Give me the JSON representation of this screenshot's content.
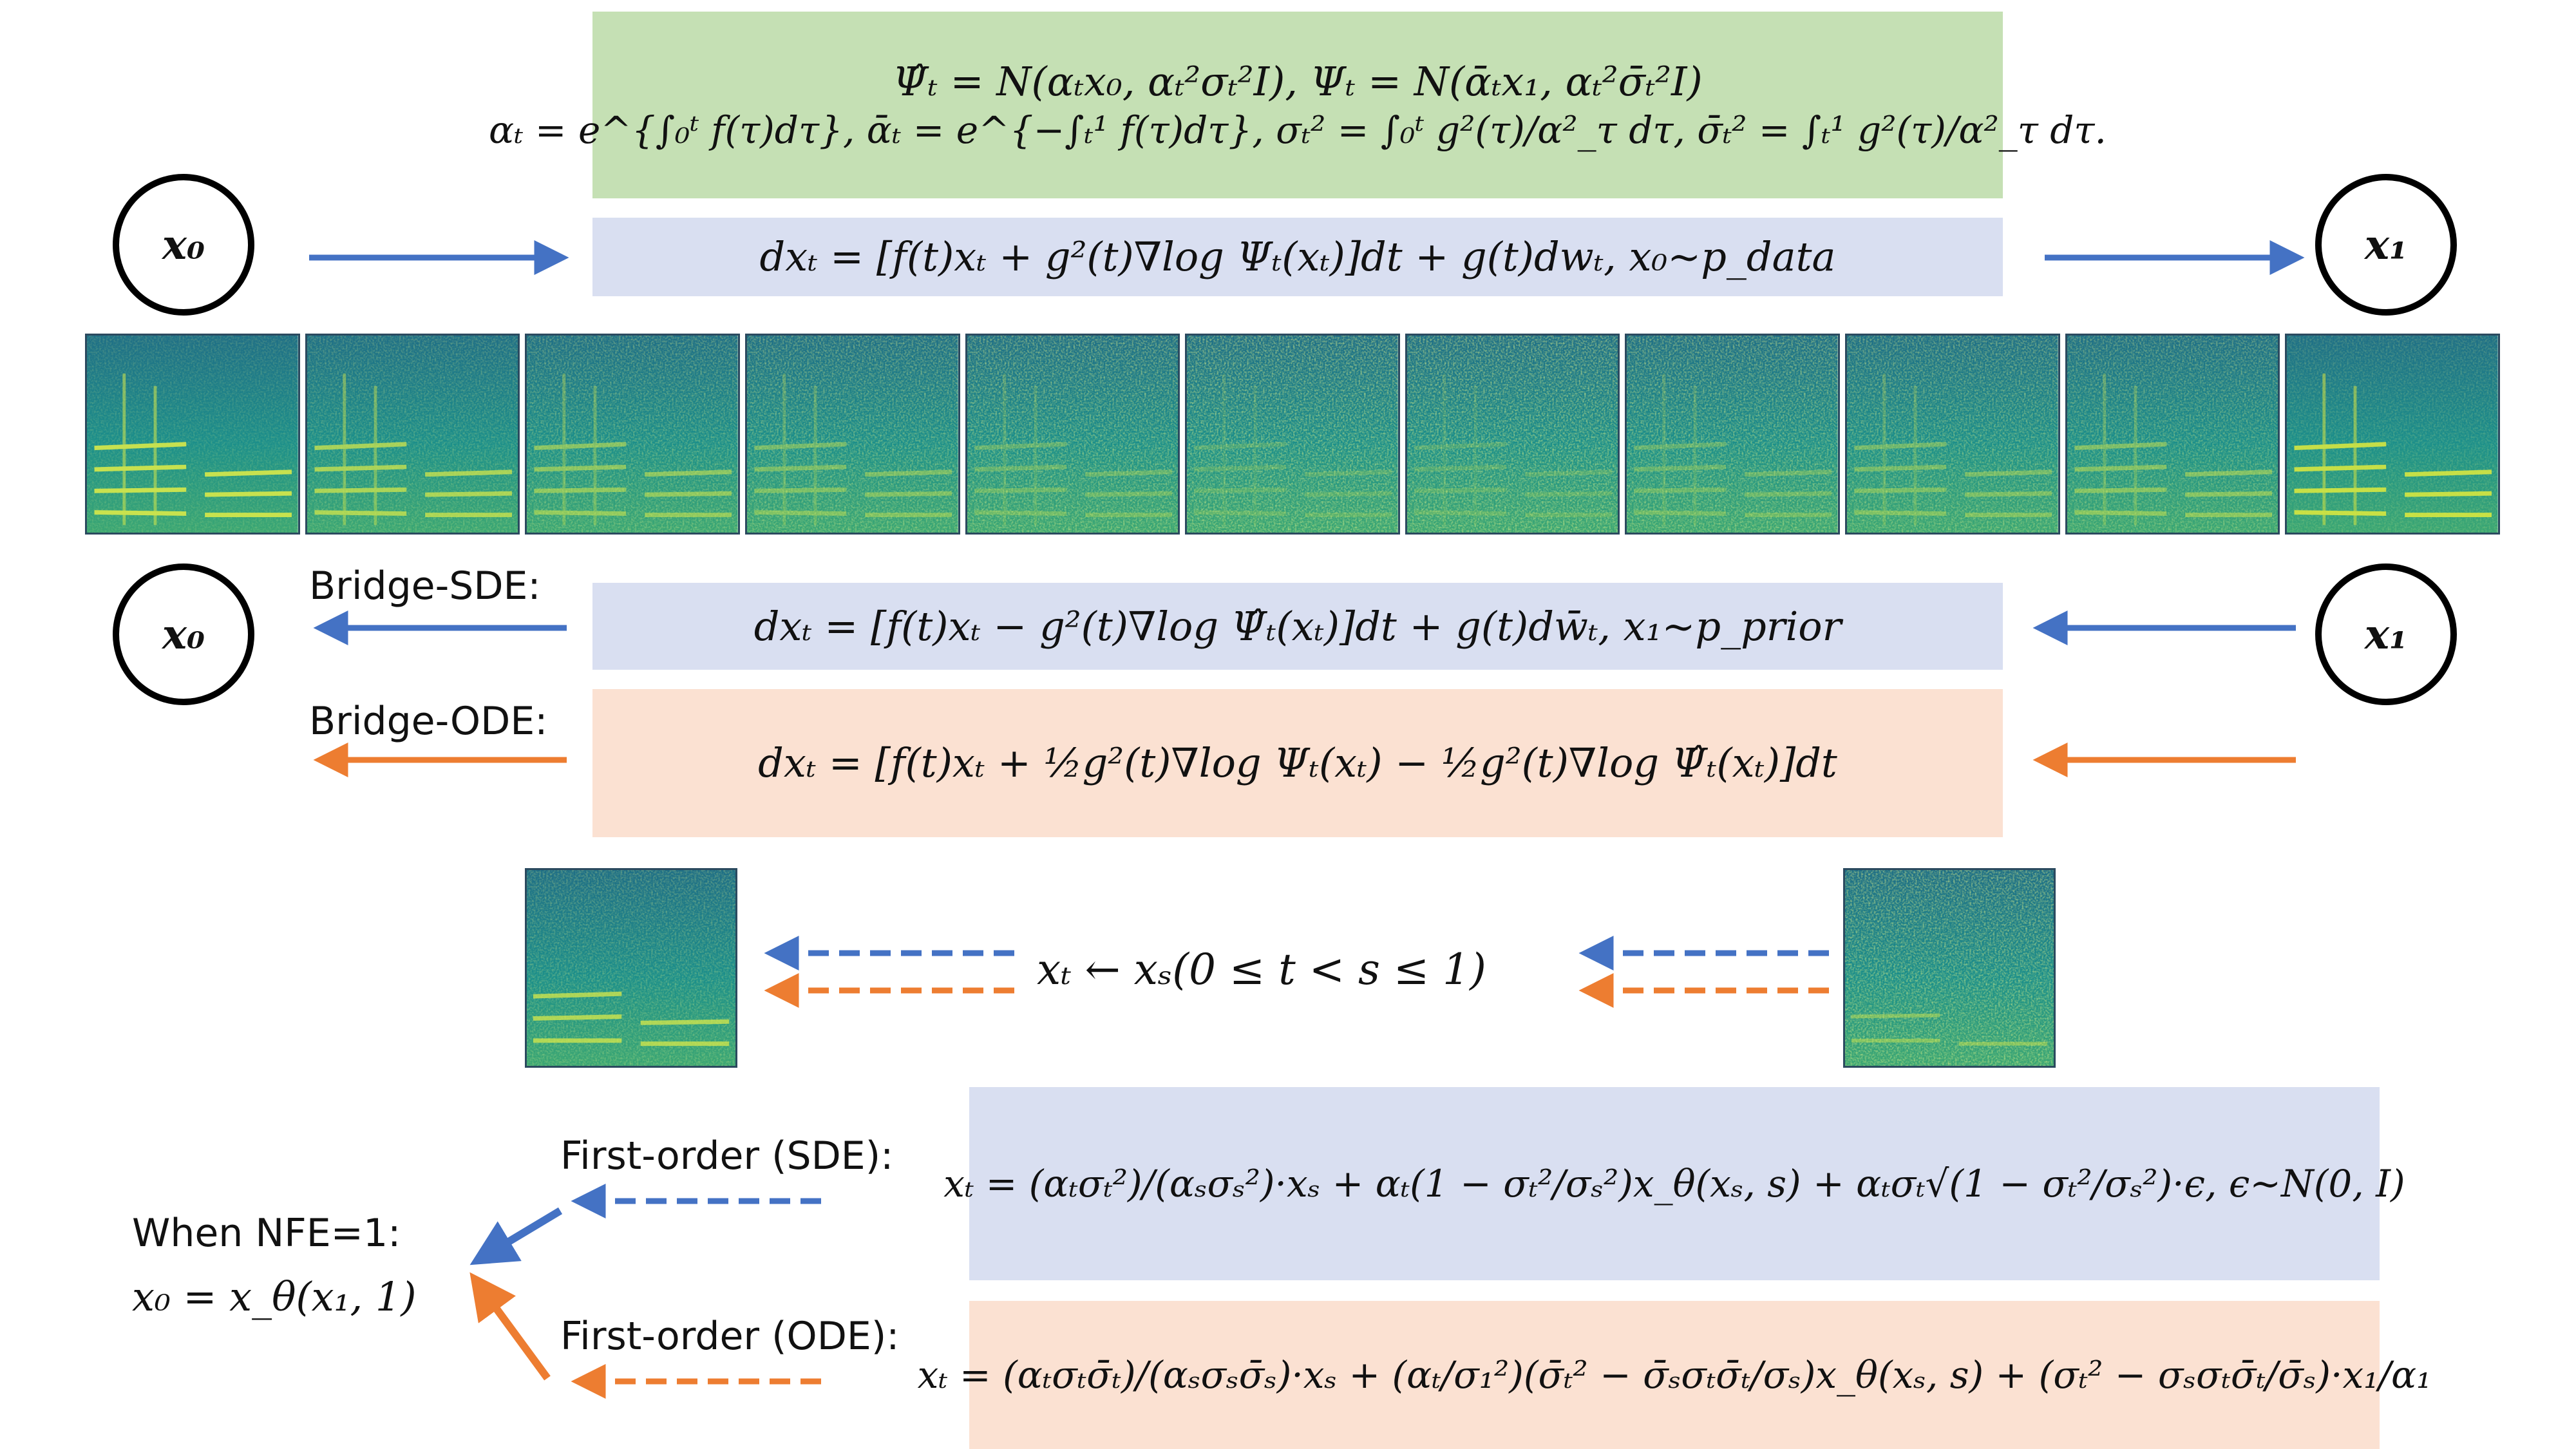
{
  "marginals": {
    "line1": "Ψ̂ₜ = N(αₜx₀, αₜ²σₜ²I),        Ψₜ = N(ᾱₜx₁, αₜ²σ̄ₜ²I)",
    "line2": "αₜ = e^{∫₀ᵗ f(τ)dτ}, ᾱₜ = e^{−∫ₜ¹ f(τ)dτ}, σₜ² = ∫₀ᵗ g²(τ)/α²_τ dτ, σ̄ₜ² = ∫ₜ¹ g²(τ)/α²_τ dτ."
  },
  "nodes": {
    "x0": "x₀",
    "x1": "x₁"
  },
  "forward_sde": "dxₜ = [f(t)xₜ + g²(t)∇log Ψₜ(xₜ)]dt + g(t)dwₜ, x₀~p_data",
  "bridge_sde": {
    "label": "Bridge-SDE:",
    "equation": "dxₜ = [f(t)xₜ − g²(t)∇log Ψ̂ₜ(xₜ)]dt + g(t)dw̄ₜ, x₁~p_prior"
  },
  "bridge_ode": {
    "label": "Bridge-ODE:",
    "equation": "dxₜ = [f(t)xₜ + ½g²(t)∇log Ψₜ(xₜ) − ½g²(t)∇log Ψ̂ₜ(xₜ)]dt"
  },
  "step": "xₜ ← xₛ(0 ≤ t < s ≤ 1)",
  "nfe": {
    "line1": "When NFE=1:",
    "line2": "x₀ = x_θ(x₁, 1)"
  },
  "first_order_sde": {
    "label": "First-order (SDE):",
    "equation": "xₜ = (αₜσₜ²)/(αₛσₛ²)·xₛ + αₜ(1 − σₜ²/σₛ²)x_θ(xₛ, s) + αₜσₜ√(1 − σₜ²/σₛ²)·ϵ, ϵ~N(0, I)"
  },
  "first_order_ode": {
    "label": "First-order (ODE):",
    "equation": "xₜ = (αₜσₜσ̄ₜ)/(αₛσₛσ̄ₛ)·xₛ + (αₜ/σ₁²)(σ̄ₜ² − σ̄ₛσₜσ̄ₜ/σₛ)x_θ(xₛ, s) + (σₜ² − σₛσₜσ̄ₜ/σ̄ₛ)·x₁/α₁"
  },
  "colors": {
    "sde_arrow": "#4472c4",
    "ode_arrow": "#ed7d31",
    "green_box": "#c5e0b4",
    "blue_box": "#d9dff1",
    "peach_box": "#fbe1d2"
  },
  "spectrogram_strip": {
    "count": 11,
    "noise_levels": [
      0.0,
      0.15,
      0.3,
      0.4,
      0.5,
      0.58,
      0.58,
      0.5,
      0.42,
      0.35,
      0.05
    ]
  }
}
